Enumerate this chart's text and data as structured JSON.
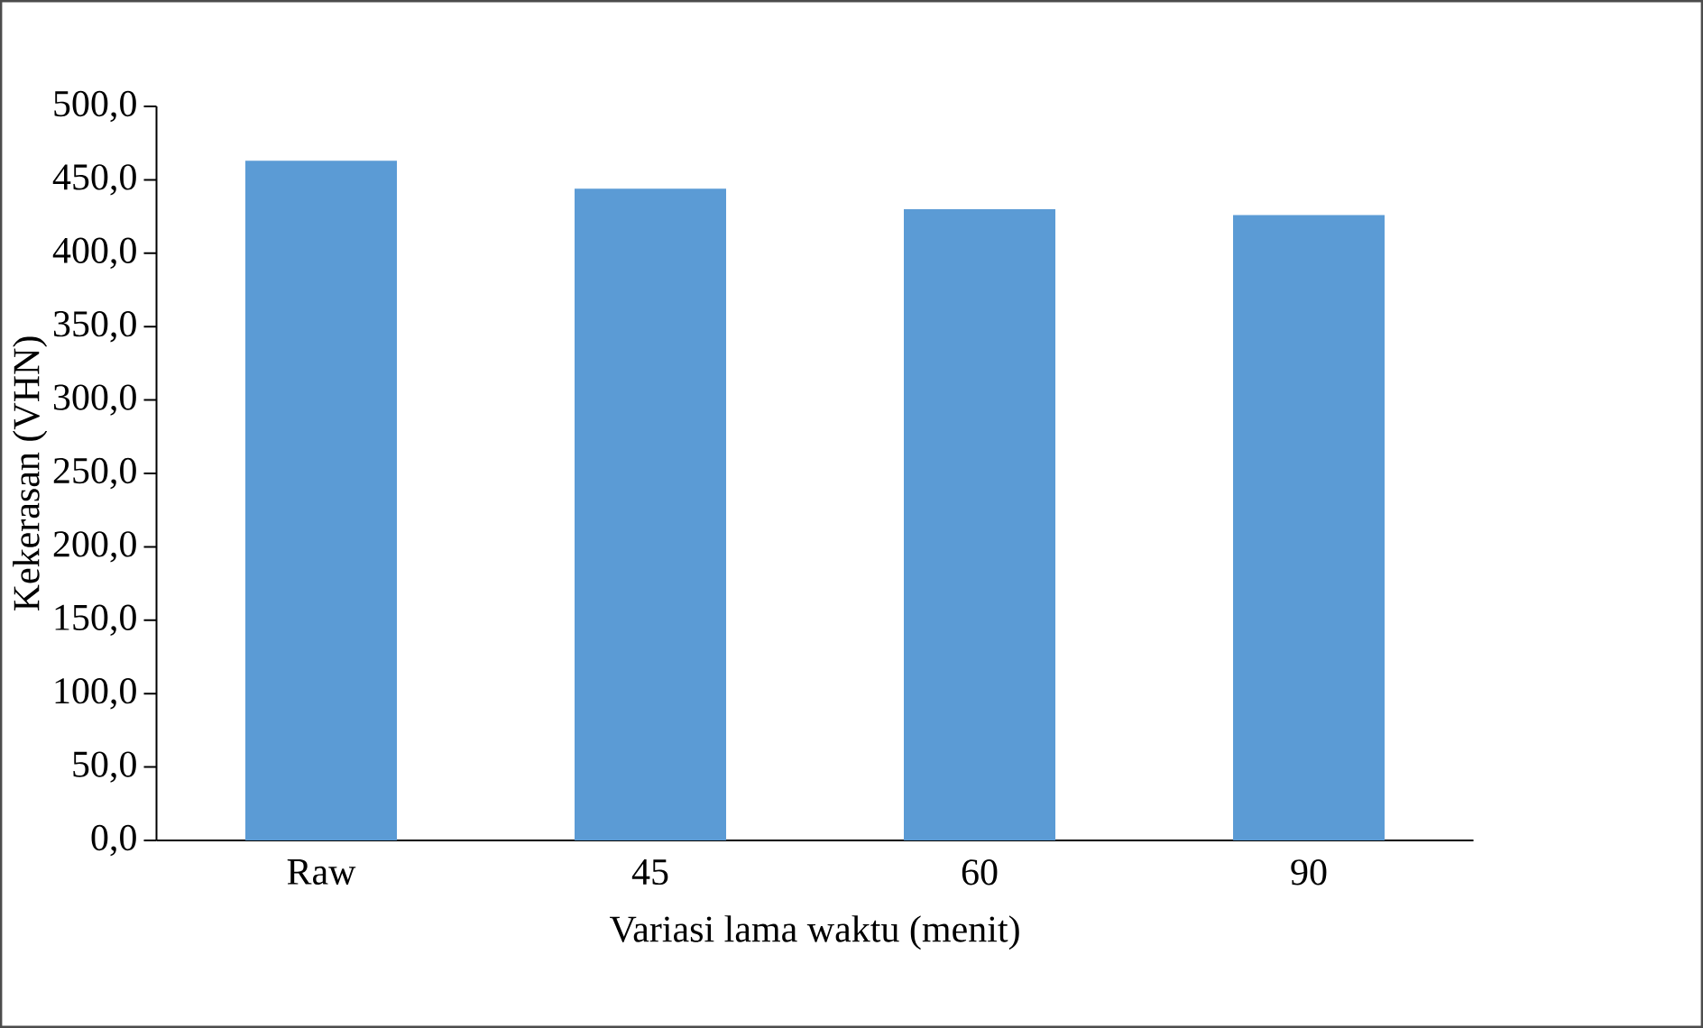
{
  "chart_data": {
    "type": "bar",
    "xlabel": "Variasi lama waktu (menit)",
    "ylabel": "Kekerasan (VHN)",
    "categories": [
      "Raw",
      "45",
      "60",
      "90"
    ],
    "values": [
      463,
      444,
      430,
      426
    ],
    "color": "#5b9bd5",
    "ylim": [
      0,
      500
    ],
    "yticks": [
      {
        "value": 0,
        "label": "0,0"
      },
      {
        "value": 50,
        "label": "50,0"
      },
      {
        "value": 100,
        "label": "100,0"
      },
      {
        "value": 150,
        "label": "150,0"
      },
      {
        "value": 200,
        "label": "200,0"
      },
      {
        "value": 250,
        "label": "250,0"
      },
      {
        "value": 300,
        "label": "300,0"
      },
      {
        "value": 350,
        "label": "350,0"
      },
      {
        "value": 400,
        "label": "400,0"
      },
      {
        "value": 450,
        "label": "450,0"
      },
      {
        "value": 500,
        "label": "500,0"
      }
    ],
    "grid": false
  }
}
